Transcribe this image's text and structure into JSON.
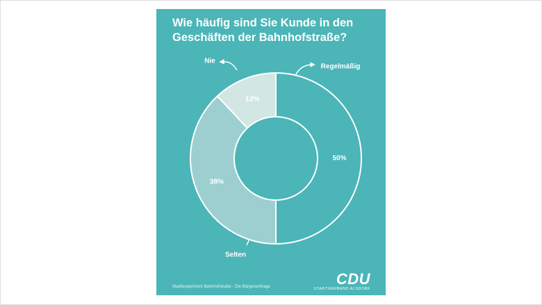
{
  "chart_data": {
    "type": "pie",
    "title": "Wie häufig sind Sie Kunde in den Geschäften der Bahnhofstraße?",
    "categories": [
      "Regelmäßig",
      "Selten",
      "Nie"
    ],
    "values": [
      50,
      38,
      12
    ],
    "value_labels": [
      "50%",
      "38%",
      "12%"
    ],
    "colors": [
      "#4bb5b8",
      "#9dcfd0",
      "#d2e7e4"
    ],
    "donut": true
  },
  "footer": {
    "caption": "Stadtexperiment Bahnhofstraße - Die Bürgerumfrage",
    "logo": "CDU",
    "org": "STADTVERBAND ALSDORF"
  }
}
